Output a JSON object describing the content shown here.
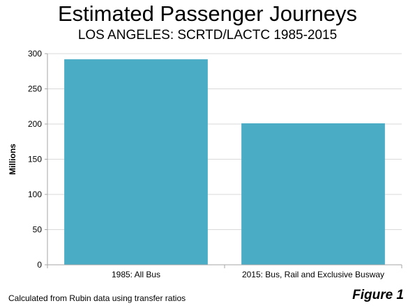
{
  "header": {
    "title": "Estimated Passenger Journeys",
    "subtitle": "LOS ANGELES: SCRTD/LACTC 1985-2015"
  },
  "footer": {
    "note": "Calculated from Rubin data using transfer ratios",
    "figure_label": "Figure 1"
  },
  "chart_data": {
    "type": "bar",
    "title": "Estimated Passenger Journeys",
    "subtitle": "LOS ANGELES: SCRTD/LACTC 1985-2015",
    "categories": [
      "1985: All Bus",
      "2015: Bus, Rail and Exclusive Busway"
    ],
    "values": [
      292,
      201
    ],
    "xlabel": "",
    "ylabel": "Millions",
    "ylim": [
      0,
      300
    ],
    "yticks": [
      0,
      50,
      100,
      150,
      200,
      250,
      300
    ],
    "grid": true,
    "legend": "none",
    "bar_color": "#4BACC6",
    "grid_color": "#D9D9D9",
    "axis_color": "#A6A6A6"
  }
}
